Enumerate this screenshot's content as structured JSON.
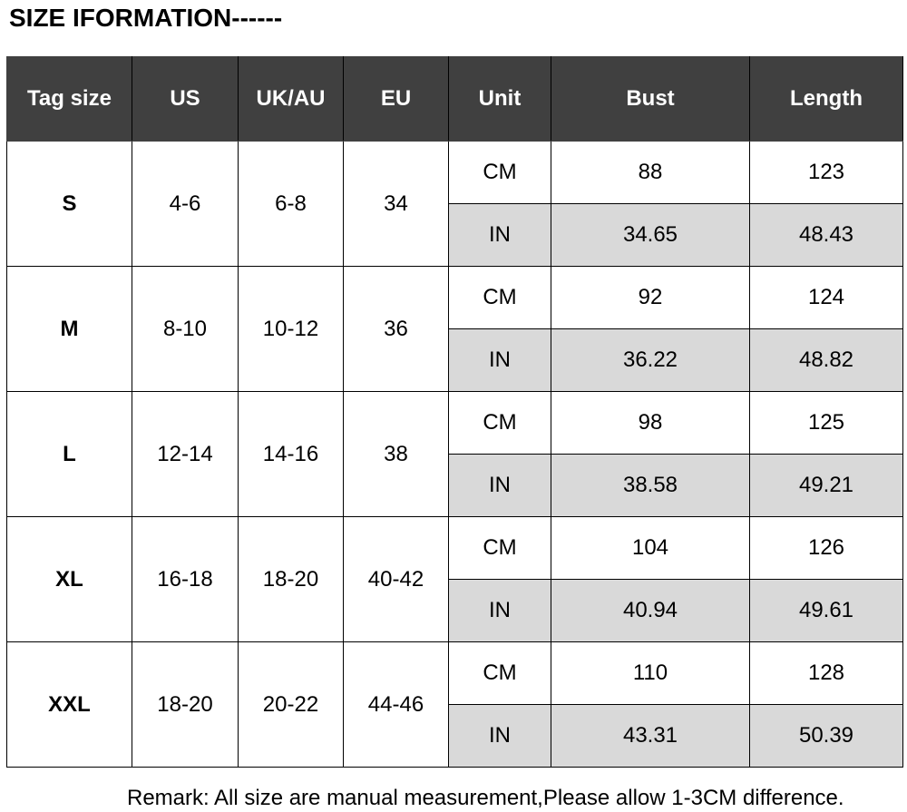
{
  "header": {
    "title": "SIZE IFORMATION------"
  },
  "table": {
    "columns": [
      "Tag size",
      "US",
      "UK/AU",
      "EU",
      "Unit",
      "Bust",
      "Length"
    ],
    "groups": [
      {
        "tag": "S",
        "us": "4-6",
        "uk": "6-8",
        "eu": "34",
        "rows": [
          [
            "CM",
            "88",
            "123"
          ],
          [
            "IN",
            "34.65",
            "48.43"
          ]
        ]
      },
      {
        "tag": "M",
        "us": "8-10",
        "uk": "10-12",
        "eu": "36",
        "rows": [
          [
            "CM",
            "92",
            "124"
          ],
          [
            "IN",
            "36.22",
            "48.82"
          ]
        ]
      },
      {
        "tag": "L",
        "us": "12-14",
        "uk": "14-16",
        "eu": "38",
        "rows": [
          [
            "CM",
            "98",
            "125"
          ],
          [
            "IN",
            "38.58",
            "49.21"
          ]
        ]
      },
      {
        "tag": "XL",
        "us": "16-18",
        "uk": "18-20",
        "eu": "40-42",
        "rows": [
          [
            "CM",
            "104",
            "126"
          ],
          [
            "IN",
            "40.94",
            "49.61"
          ]
        ]
      },
      {
        "tag": "XXL",
        "us": "18-20",
        "uk": "20-22",
        "eu": "44-46",
        "rows": [
          [
            "CM",
            "110",
            "128"
          ],
          [
            "IN",
            "43.31",
            "50.39"
          ]
        ]
      }
    ]
  },
  "footer": {
    "remark": "Remark: All size are manual measurement,Please allow 1-3CM difference."
  }
}
